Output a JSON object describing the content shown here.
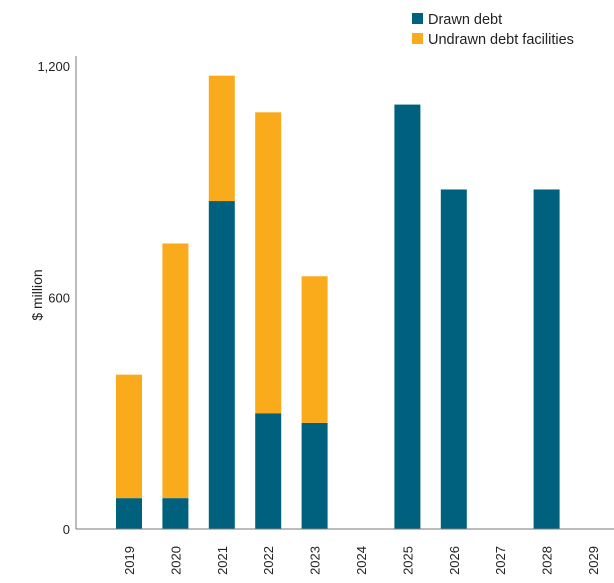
{
  "chart_data": {
    "type": "bar",
    "stacked": true,
    "categories": [
      "2019",
      "2020",
      "2021",
      "2022",
      "2023",
      "2024",
      "2025",
      "2026",
      "2027",
      "2028",
      "2029"
    ],
    "series": [
      {
        "name": "Drawn debt",
        "color": "#00617f",
        "values": [
          80,
          80,
          850,
          300,
          275,
          0,
          1100,
          880,
          0,
          880,
          0
        ]
      },
      {
        "name": "Undrawn debt facilities",
        "color": "#f9ab1b",
        "values": [
          320,
          660,
          325,
          780,
          380,
          0,
          0,
          0,
          0,
          0,
          0
        ]
      }
    ],
    "ylabel": "$ million",
    "xlabel": "",
    "yticks": [
      "0",
      "600",
      "1,200"
    ],
    "ylim": [
      0,
      1200
    ],
    "grid": false,
    "legend_position": "top-right",
    "axis_color": "#7a7a7a"
  }
}
